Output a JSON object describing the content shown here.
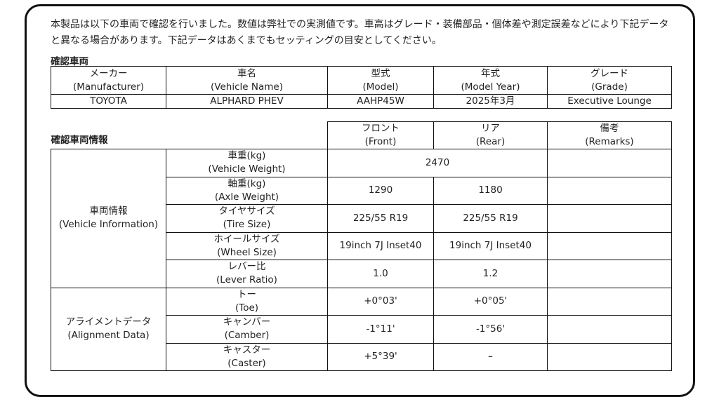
{
  "intro": "本製品は以下の車両で確認を行いました。数値は弊社での実測値です。車高はグレード・装備部品・個体差や測定誤差などにより下記データと異なる場合があります。下記データはあくまでもセッティングの目安としてください。",
  "vehicle": {
    "title": "確認車両",
    "headers": [
      [
        "メーカー",
        "(Manufacturer)"
      ],
      [
        "車名",
        "(Vehicle Name)"
      ],
      [
        "型式",
        "(Model)"
      ],
      [
        "年式",
        "(Model Year)"
      ],
      [
        "グレード",
        "(Grade)"
      ]
    ],
    "values": [
      "TOYOTA",
      "ALPHARD PHEV",
      "AAHP45W",
      "2025年3月",
      "Executive Lounge"
    ]
  },
  "info": {
    "title": "確認車両情報",
    "headers": [
      [
        "フロント",
        "(Front)"
      ],
      [
        "リア",
        "(Rear)"
      ],
      [
        "備考",
        "(Remarks)"
      ]
    ],
    "groups": [
      [
        "車両情報",
        "(Vehicle Information)"
      ],
      [
        "アライメントデータ",
        "(Alignment Data)"
      ]
    ],
    "rows": [
      {
        "label": [
          "車重(kg)",
          "(Vehicle Weight)"
        ],
        "front": "2470",
        "rear": "",
        "remarks": ""
      },
      {
        "label": [
          "軸重(kg)",
          "(Axle Weight)"
        ],
        "front": "1290",
        "rear": "1180",
        "remarks": ""
      },
      {
        "label": [
          "タイヤサイズ",
          "(Tire Size)"
        ],
        "front": "225/55 R19",
        "rear": "225/55 R19",
        "remarks": ""
      },
      {
        "label": [
          "ホイールサイズ",
          "(Wheel Size)"
        ],
        "front": "19inch 7J Inset40",
        "rear": "19inch 7J Inset40",
        "remarks": ""
      },
      {
        "label": [
          "レバー比",
          "(Lever Ratio)"
        ],
        "front": "1.0",
        "rear": "1.2",
        "remarks": ""
      },
      {
        "label": [
          "トー",
          "(Toe)"
        ],
        "front": "+0°03'",
        "rear": "+0°05'",
        "remarks": ""
      },
      {
        "label": [
          "キャンバー",
          "(Camber)"
        ],
        "front": "-1°11'",
        "rear": "-1°56'",
        "remarks": ""
      },
      {
        "label": [
          "キャスター",
          "(Caster)"
        ],
        "front": "+5°39'",
        "rear": "–",
        "remarks": ""
      }
    ]
  }
}
